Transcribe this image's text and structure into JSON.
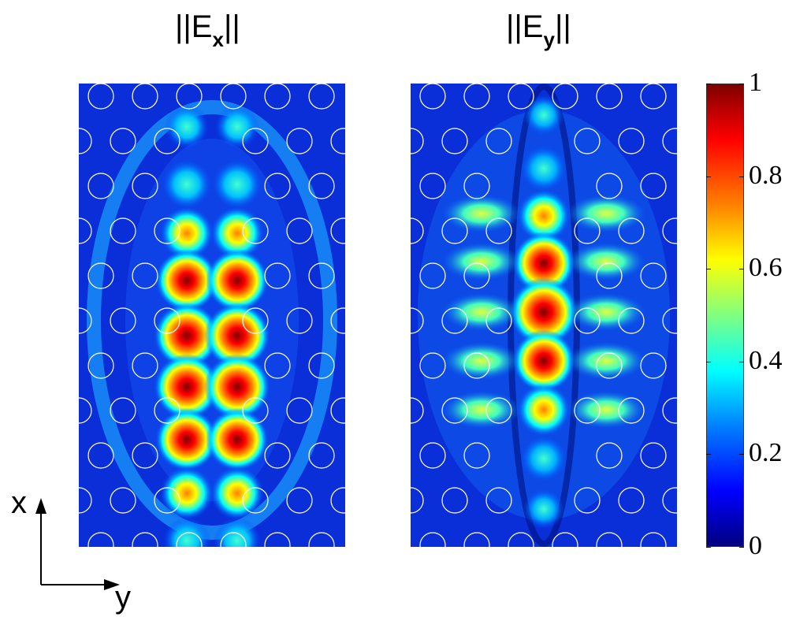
{
  "titles": {
    "left": {
      "prefix": "||E",
      "sub": "x",
      "suffix": "||"
    },
    "right": {
      "prefix": "||E",
      "sub": "y",
      "suffix": "||"
    }
  },
  "colorbar": {
    "ticks": [
      "1",
      "0.8",
      "0.6",
      "0.4",
      "0.2",
      "0"
    ],
    "colormap": "jet"
  },
  "axes_indicator": {
    "x_label": "x",
    "y_label": "y"
  },
  "colors": {
    "jet_stops": [
      "#00007f",
      "#0000ff",
      "#0080ff",
      "#00ffff",
      "#80ff80",
      "#ffff00",
      "#ff8000",
      "#ff0000",
      "#7f0000"
    ],
    "hole_outline": "#ffffff"
  }
}
